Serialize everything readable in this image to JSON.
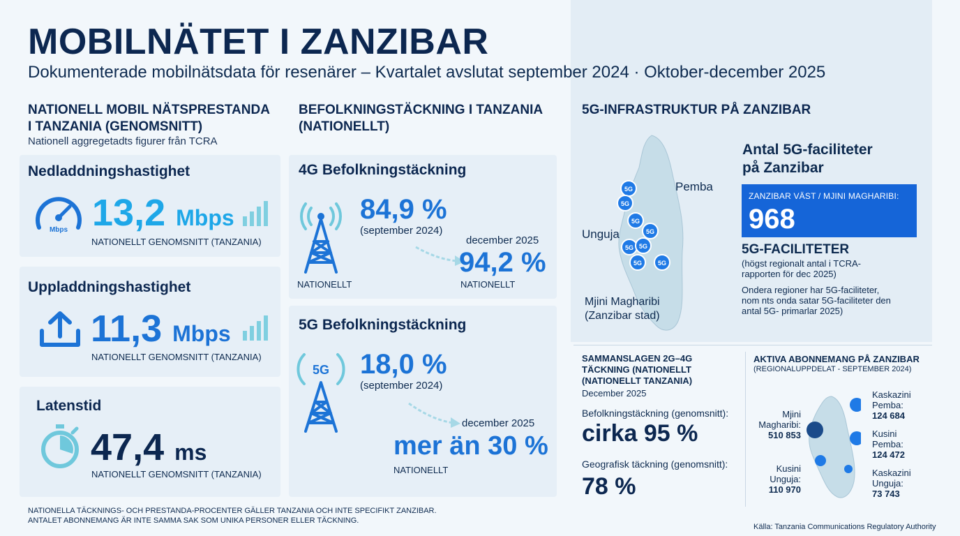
{
  "header": {
    "title": "MOBILNÄTET I ZANZIBAR",
    "subtitle": "Dokumenterade mobilnätsdata för resenärer – Kvartalet avslutat september 2024 · Oktober-december 2025"
  },
  "national_performance": {
    "heading_line1": "NATIONELL MOBIL NÄTSPRESTANDA",
    "heading_line2": "I TANZANIA (GENOMSNITT)",
    "subheading": "Nationell aggregetadts figurer från TCRA",
    "download": {
      "label": "Nedladdningshastighet",
      "value": "13,2",
      "unit": "Mbps",
      "note": "NATIONELLT GENOMSNITT (TANZANIA)",
      "icon_label": "Mbps"
    },
    "upload": {
      "label": "Uppladdningshastighet",
      "value": "11,3",
      "unit": "Mbps",
      "note": "NATIONELLT GENOMSNITT (TANZANIA)"
    },
    "latency": {
      "label": "Latenstid",
      "value": "47,4",
      "unit": "ms",
      "note": "NATIONELLT GENOMSNITT (TANZANIA)"
    }
  },
  "population_coverage": {
    "heading_line1": "BEFOLKNINGSTÄCKNING I TANZANIA",
    "heading_line2": "(NATIONELLT)",
    "g4": {
      "label": "4G Befolkningstäckning",
      "value_2024": "84,9 %",
      "date_2024": "(september 2024)",
      "date_2025": "december 2025",
      "value_2025": "94,2 %",
      "scope_left": "NATIONELLT",
      "scope_right": "NATIONELLT"
    },
    "g5": {
      "label": "5G Befolkningstäckning",
      "value_2024": "18,0 %",
      "date_2024": "(september 2024)",
      "date_2025": "december 2025",
      "value_2025": "mer än 30 %",
      "scope": "NATIONELLT",
      "icon_label": "5G"
    }
  },
  "infrastructure": {
    "heading": "5G-INFRASTRUKTUR PÅ ZANZIBAR",
    "map_labels": {
      "pemba": "Pemba",
      "unguja": "Unguja",
      "mjini_line1": "Mjini Magharibi",
      "mjini_line2": "(Zanzibar stad)"
    },
    "marker_label": "5G",
    "count_title_line1": "Antal 5G-faciliteter",
    "count_title_line2": "på Zanzibar",
    "badge_label": "ZANZIBAR VÄST / MJINI MAGHARIBI:",
    "badge_value": "968",
    "facilities_heading": "5G-FACILITETER",
    "facilities_note_line1": "(högst regionalt antal i TCRA-",
    "facilities_note_line2": "rapporten för dec 2025)",
    "other_line1": "Ondera regioner har 5G-faciliteter,",
    "other_line2": "nom nts onda satar 5G-faciliteter den",
    "other_line3": "antal 5G- primarlar 2025)"
  },
  "combined": {
    "heading_line1": "SAMMANSLAGEN 2G–4G",
    "heading_line2": "TÄCKNING (NATIONELLT",
    "heading_line3": "(NATIONELLT TANZANIA)",
    "date": "December 2025",
    "pop_label": "Befolkningstäckning (genomsnitt):",
    "pop_value": "cirka 95 %",
    "geo_label": "Geografisk täckning (genomsnitt):",
    "geo_value": "78 %"
  },
  "subscriptions": {
    "heading": "AKTIVA ABONNEMANG PÅ ZANZIBAR",
    "subheading": "(REGIONALUPPDELAT - SEPTEMBER 2024)",
    "regions": [
      {
        "name_line1": "Mjini",
        "name_line2": "Magharibi:",
        "value": "510 853"
      },
      {
        "name_line1": "Kusini",
        "name_line2": "Unguja:",
        "value": "110 970"
      },
      {
        "name_line1": "Kaskazini",
        "name_line2": "Pemba:",
        "value": "124 684"
      },
      {
        "name_line1": "Kusini",
        "name_line2": "Pemba:",
        "value": "124 472"
      },
      {
        "name_line1": "Kaskazini",
        "name_line2": "Unguja:",
        "value": "73 743"
      }
    ]
  },
  "footer": {
    "note_line1": "NATIONELLA TÄCKNINGS- OCH PRESTANDA-PROCENTER GÄLLER TANZANIA OCH INTE SPECIFIKT ZANZIBAR.",
    "note_line2": "ANTALET ABONNEMANG ÄR INTE SAMMA SAK SOM UNIKA PERSONER ELLER TÄCKNING.",
    "source": "Källa: Tanzania Communications Regulatory Authority"
  },
  "colors": {
    "navy": "#0c2750",
    "light_blue": "#1ea7e8",
    "mid_blue": "#1c73d6",
    "badge_blue": "#1565d8",
    "island_fill": "#c6dde8"
  }
}
